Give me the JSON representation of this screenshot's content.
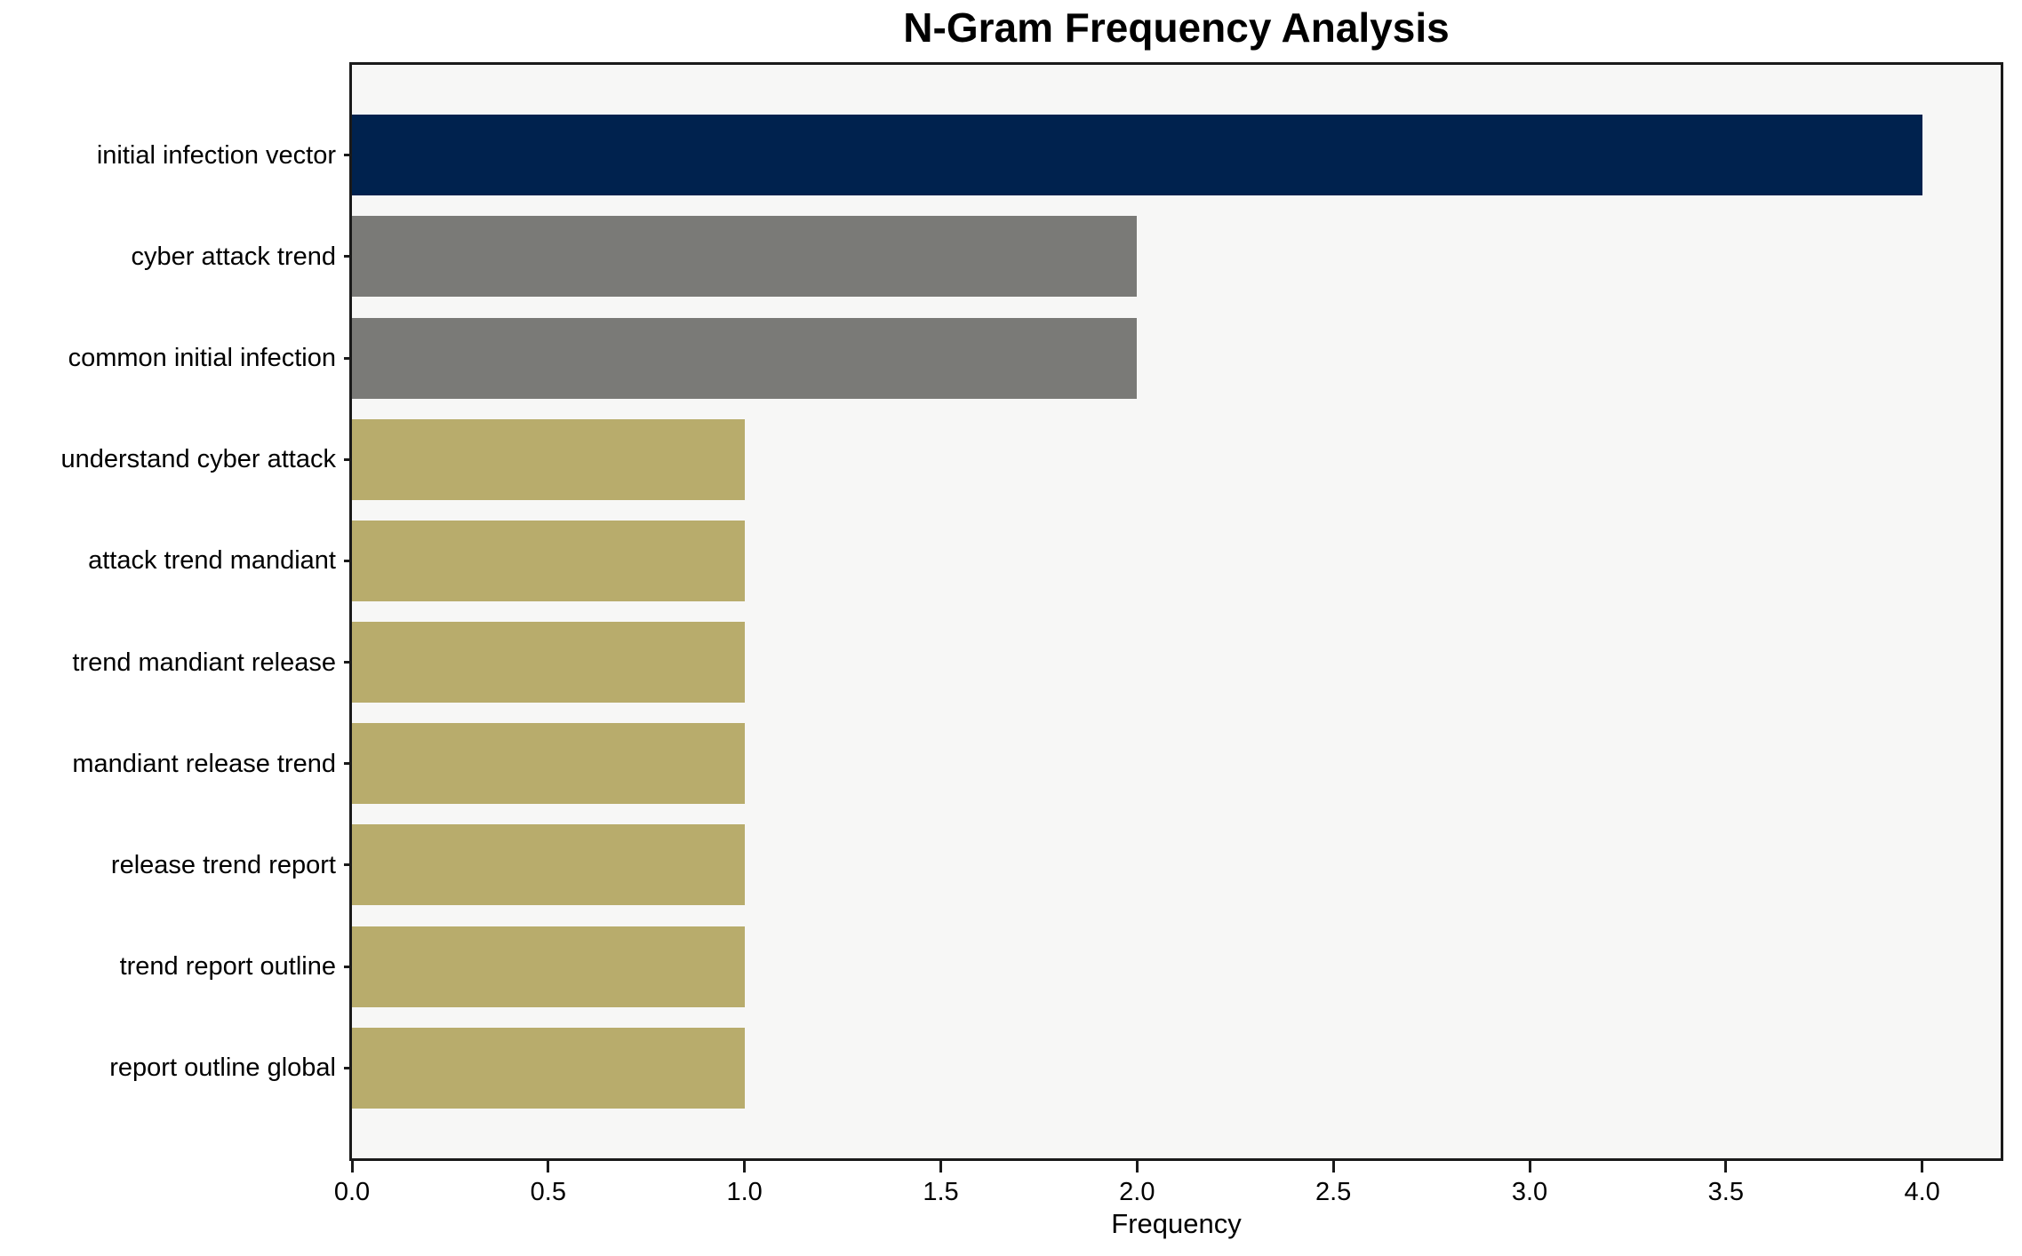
{
  "title": "N-Gram Frequency Analysis",
  "chart_data": {
    "type": "bar",
    "orientation": "horizontal",
    "title": "N-Gram Frequency Analysis",
    "xlabel": "Frequency",
    "ylabel": "",
    "categories": [
      "initial infection vector",
      "cyber attack trend",
      "common initial infection",
      "understand cyber attack",
      "attack trend mandiant",
      "trend mandiant release",
      "mandiant release trend",
      "release trend report",
      "trend report outline",
      "report outline global"
    ],
    "values": [
      4,
      2,
      2,
      1,
      1,
      1,
      1,
      1,
      1,
      1
    ],
    "bar_colors": [
      "#00224e",
      "#7a7a77",
      "#7a7a77",
      "#b8ac6c",
      "#b8ac6c",
      "#b8ac6c",
      "#b8ac6c",
      "#b8ac6c",
      "#b8ac6c",
      "#b8ac6c"
    ],
    "xlim": [
      0,
      4.2
    ],
    "xticks": [
      0.0,
      0.5,
      1.0,
      1.5,
      2.0,
      2.5,
      3.0,
      3.5,
      4.0
    ],
    "xtick_labels": [
      "0.0",
      "0.5",
      "1.0",
      "1.5",
      "2.0",
      "2.5",
      "3.0",
      "3.5",
      "4.0"
    ],
    "grid": false,
    "legend": null,
    "plot_background": "#f7f7f6",
    "figure_background": "#ffffff",
    "spine_color": "#1a1a1a"
  }
}
